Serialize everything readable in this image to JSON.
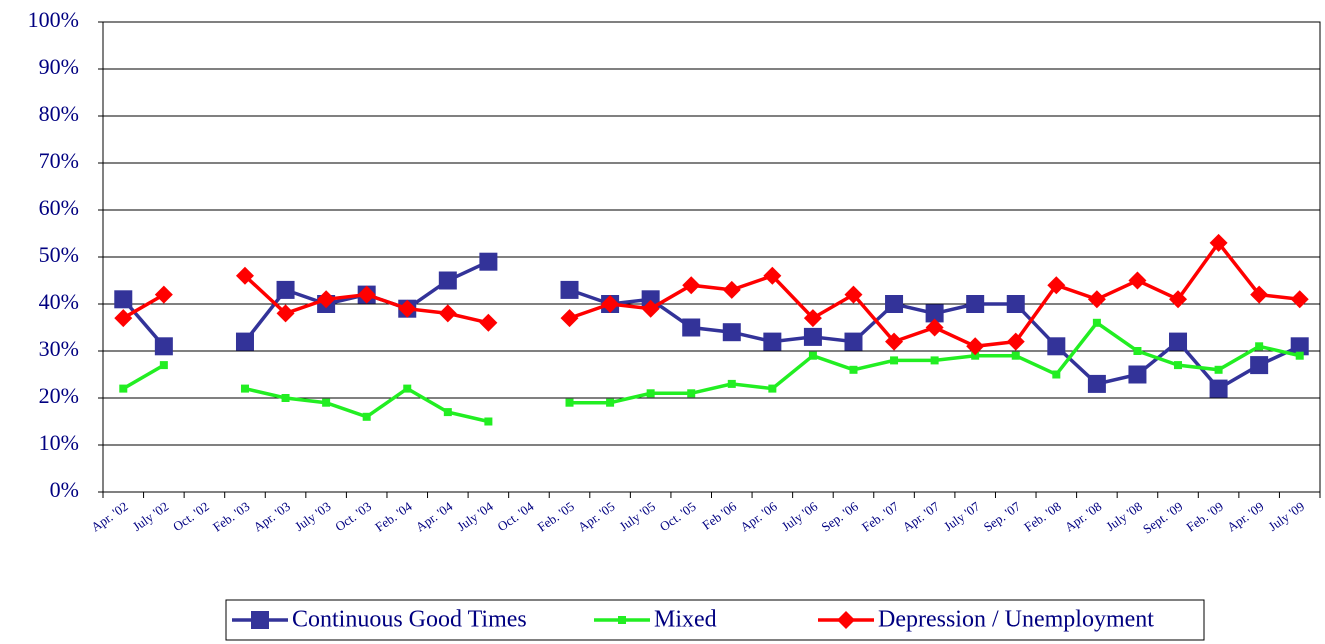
{
  "chart_data": {
    "type": "line",
    "categories": [
      "Apr. '02",
      "July '02",
      "Oct. '02",
      "Feb. '03",
      "Apr. '03",
      "July '03",
      "Oct. '03",
      "Feb. '04",
      "Apr. '04",
      "July '04",
      "Oct. '04",
      "Feb. '05",
      "Apr. '05",
      "July '05",
      "Oct. '05",
      "Feb '06",
      "Apr. '06",
      "July '06",
      "Sep. '06",
      "Feb. '07",
      "Apr. '07",
      "July '07",
      "Sep. '07",
      "Feb. '08",
      "Apr. '08",
      "July '08",
      "Sept. '09",
      "Feb. '09",
      "Apr. '09",
      "July '09"
    ],
    "series": [
      {
        "name": "Continuous Good Times",
        "color": "#333399",
        "marker": "square",
        "values": [
          41,
          31,
          null,
          32,
          43,
          40,
          42,
          39,
          45,
          49,
          null,
          43,
          40,
          41,
          35,
          34,
          32,
          33,
          32,
          40,
          38,
          40,
          40,
          31,
          23,
          25,
          32,
          22,
          27,
          31
        ]
      },
      {
        "name": "Mixed",
        "color": "#22ee22",
        "marker": "small-square",
        "values": [
          22,
          27,
          null,
          22,
          20,
          19,
          16,
          22,
          17,
          15,
          null,
          19,
          19,
          21,
          21,
          23,
          22,
          29,
          26,
          28,
          28,
          29,
          29,
          25,
          36,
          30,
          27,
          26,
          31,
          29
        ]
      },
      {
        "name": "Depression / Unemployment",
        "color": "#ff0000",
        "marker": "diamond",
        "values": [
          37,
          42,
          null,
          46,
          38,
          41,
          42,
          39,
          38,
          36,
          null,
          37,
          40,
          39,
          44,
          43,
          46,
          37,
          42,
          32,
          35,
          31,
          32,
          44,
          41,
          45,
          41,
          53,
          42,
          41
        ]
      }
    ],
    "ylim": [
      0,
      100
    ],
    "yticks": [
      {
        "value": 0,
        "label": "0%"
      },
      {
        "value": 10,
        "label": "10%"
      },
      {
        "value": 20,
        "label": "20%"
      },
      {
        "value": 30,
        "label": "30%"
      },
      {
        "value": 40,
        "label": "40%"
      },
      {
        "value": 50,
        "label": "50%"
      },
      {
        "value": 60,
        "label": "60%"
      },
      {
        "value": 70,
        "label": "70%"
      },
      {
        "value": 80,
        "label": "80%"
      },
      {
        "value": 90,
        "label": "90%"
      },
      {
        "value": 100,
        "label": "100%"
      }
    ],
    "grid": true,
    "legend": "bottom"
  }
}
